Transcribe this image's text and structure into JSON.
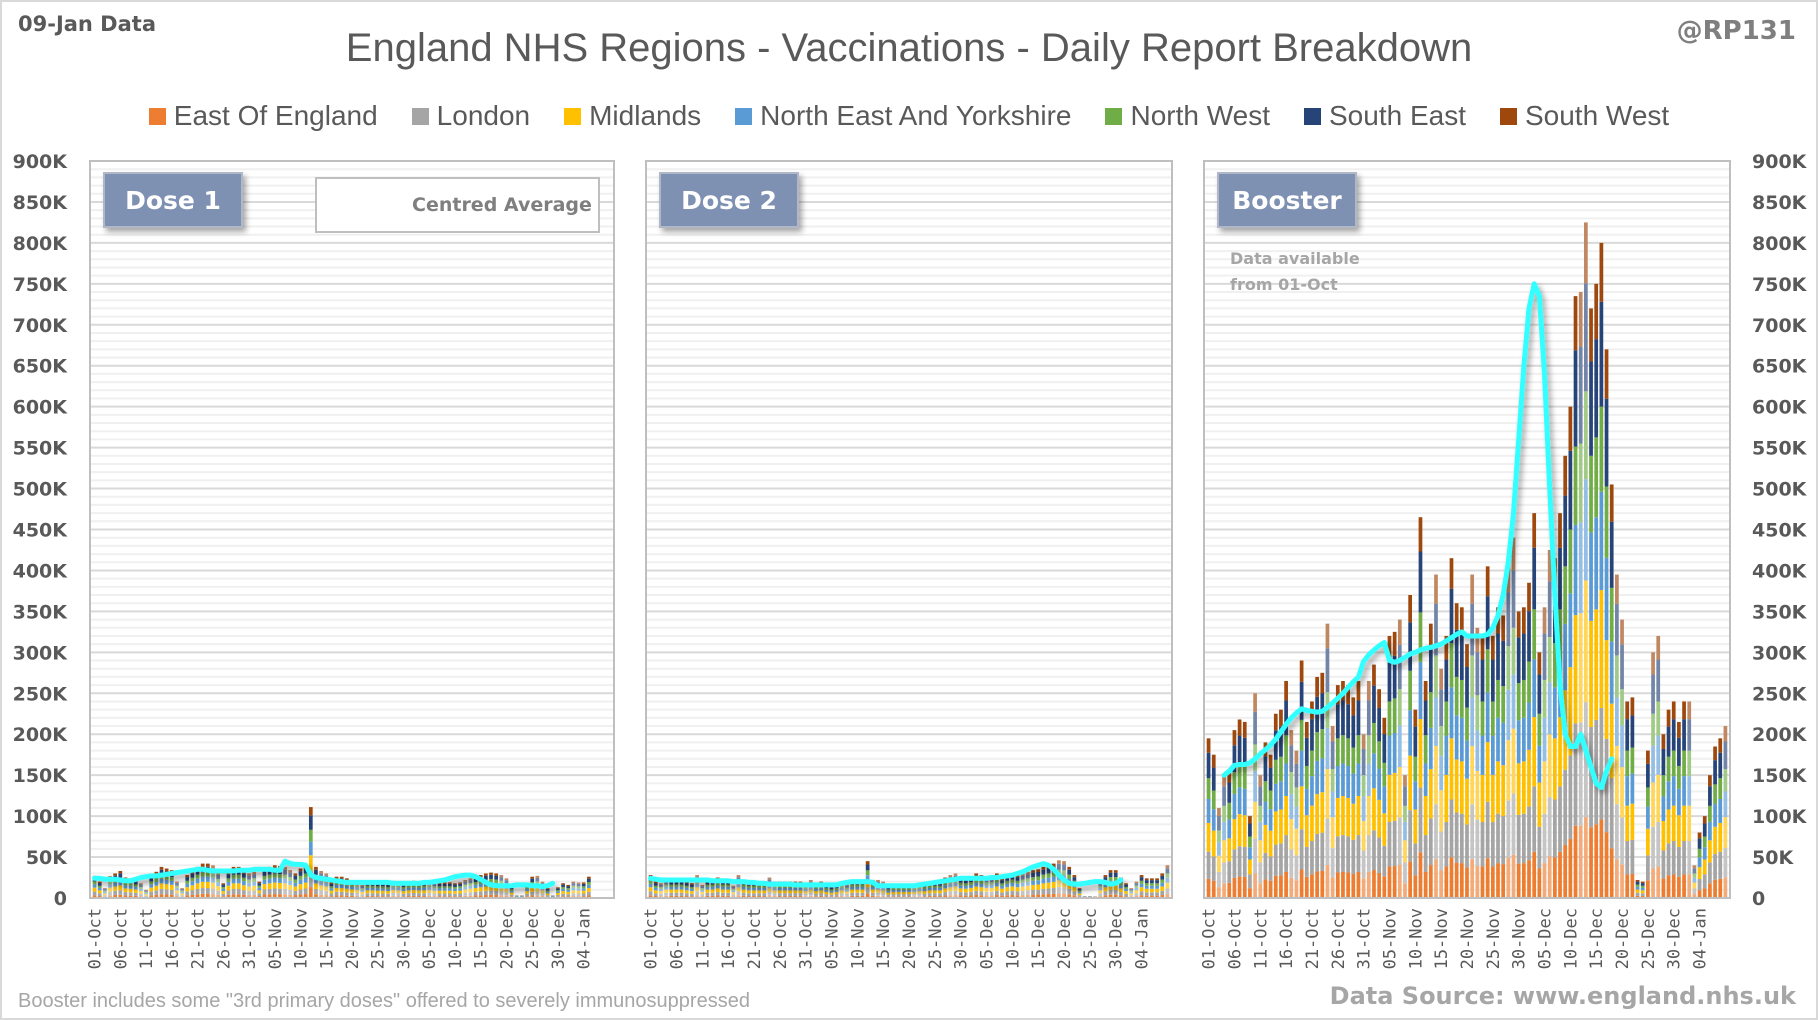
{
  "header": {
    "data_date": "09-Jan Data",
    "handle": "@RP131",
    "title": "England NHS Regions - Vaccinations - Daily Report Breakdown"
  },
  "footer": {
    "note": "Booster includes some \"3rd primary doses\" offered to severely immunosuppressed",
    "source": "Data Source: www.england.nhs.uk"
  },
  "colors": {
    "East Of England": "#ed7d31",
    "London": "#a5a5a5",
    "Midlands": "#ffc000",
    "North East And Yorkshire": "#5b9bd5",
    "North West": "#70ad47",
    "South East": "#264478",
    "South West": "#9e480e",
    "average": "#33ffff",
    "panel_label_bg": "#7f91b3",
    "grid": "#d9d9d9"
  },
  "chart_data": {
    "type": "bar",
    "stacked": true,
    "title": "England NHS Regions - Vaccinations - Daily Report Breakdown",
    "legend": [
      "East Of England",
      "London",
      "Midlands",
      "North East And Yorkshire",
      "North West",
      "South East",
      "South West"
    ],
    "legend_position": "top",
    "line_legend": "Centred Average",
    "ylim": [
      0,
      900000
    ],
    "yticks": [
      "0",
      "50K",
      "100K",
      "150K",
      "200K",
      "250K",
      "300K",
      "350K",
      "400K",
      "450K",
      "500K",
      "550K",
      "600K",
      "650K",
      "700K",
      "750K",
      "800K",
      "850K",
      "900K"
    ],
    "xticks": [
      "01-Oct",
      "06-Oct",
      "11-Oct",
      "16-Oct",
      "21-Oct",
      "26-Oct",
      "31-Oct",
      "05-Nov",
      "10-Nov",
      "15-Nov",
      "20-Nov",
      "25-Nov",
      "30-Nov",
      "05-Dec",
      "10-Dec",
      "15-Dec",
      "20-Dec",
      "25-Dec",
      "30-Dec",
      "04-Jan"
    ],
    "x_start": "01-Oct",
    "num_days": 101,
    "shares": [
      0.12,
      0.17,
      0.18,
      0.15,
      0.13,
      0.16,
      0.09
    ],
    "panels": [
      {
        "label": "Dose 1",
        "totals": [
          27000,
          20000,
          12000,
          27000,
          30000,
          33000,
          25000,
          24000,
          22000,
          18000,
          10000,
          27000,
          32000,
          38000,
          36000,
          34000,
          20000,
          12000,
          28000,
          33000,
          38000,
          42000,
          42000,
          40000,
          31000,
          18000,
          32000,
          38000,
          38000,
          33000,
          30000,
          32000,
          20000,
          36000,
          38000,
          40000,
          39000,
          38000,
          34000,
          30000,
          36000,
          40000,
          111000,
          38000,
          33000,
          30000,
          19000,
          26000,
          26000,
          24000,
          22000,
          21000,
          16000,
          20000,
          20000,
          19000,
          19000,
          18000,
          21000,
          20000,
          18000,
          20000,
          21000,
          20000,
          20000,
          21000,
          19000,
          19000,
          19000,
          19000,
          18000,
          19000,
          22000,
          24000,
          26000,
          28000,
          30000,
          31000,
          30000,
          28000,
          24000,
          14000,
          3000,
          3000,
          18000,
          26000,
          27000,
          20000,
          12000,
          3000,
          13000,
          18000,
          16000,
          20000,
          19000,
          19000,
          26000,
          0,
          0,
          0,
          0
        ],
        "average": [
          24000,
          24000,
          23000,
          23000,
          23000,
          22000,
          21000,
          21000,
          23000,
          25000,
          26000,
          27000,
          27000,
          28000,
          29000,
          30000,
          31000,
          32000,
          33000,
          34000,
          35000,
          35000,
          34000,
          33000,
          33000,
          33000,
          33000,
          33000,
          34000,
          34000,
          34000,
          35000,
          35000,
          35000,
          35000,
          34000,
          34000,
          45000,
          42000,
          41000,
          41000,
          40000,
          28000,
          25000,
          24000,
          23000,
          22000,
          21000,
          20000,
          19000,
          19000,
          19000,
          19000,
          19000,
          19000,
          19000,
          19000,
          19000,
          18000,
          18000,
          18000,
          18000,
          18000,
          18000,
          19000,
          19000,
          20000,
          21000,
          22000,
          24000,
          26000,
          27000,
          28000,
          28000,
          26000,
          23000,
          19000,
          16000,
          15000,
          15000,
          15000,
          15000,
          16000,
          16000,
          16000,
          15000,
          15000,
          14000,
          15000,
          18000,
          null,
          null,
          null,
          null,
          null,
          null,
          null,
          null,
          null,
          null,
          null
        ]
      },
      {
        "label": "Dose 2",
        "totals": [
          28000,
          20000,
          18000,
          22000,
          22000,
          22000,
          22000,
          20000,
          18000,
          28000,
          16000,
          22000,
          22000,
          25000,
          22000,
          22000,
          15000,
          28000,
          22000,
          20000,
          20000,
          20000,
          20000,
          25000,
          20000,
          20000,
          20000,
          20000,
          20000,
          20000,
          18000,
          22000,
          18000,
          20000,
          16000,
          14000,
          16000,
          20000,
          17000,
          22000,
          22000,
          22000,
          45000,
          22000,
          22000,
          20000,
          14000,
          16000,
          16000,
          16000,
          16000,
          16000,
          18000,
          18000,
          20000,
          20000,
          20000,
          25000,
          28000,
          30000,
          25000,
          24000,
          26000,
          30000,
          28000,
          26000,
          26000,
          30000,
          24000,
          28000,
          30000,
          28000,
          30000,
          32000,
          34000,
          35000,
          38000,
          40000,
          42000,
          46000,
          45000,
          38000,
          28000,
          12000,
          2000,
          2000,
          2000,
          20000,
          28000,
          34000,
          34000,
          25000,
          18000,
          12000,
          20000,
          28000,
          24000,
          24000,
          24000,
          30000,
          40000
        ],
        "average": [
          24000,
          23000,
          22000,
          22000,
          22000,
          22000,
          22000,
          22000,
          22000,
          22000,
          22000,
          22000,
          21000,
          21000,
          21000,
          21000,
          20000,
          20000,
          20000,
          19000,
          19000,
          18000,
          18000,
          17000,
          17000,
          17000,
          17000,
          17000,
          16000,
          16000,
          16000,
          16000,
          16000,
          16000,
          16000,
          16000,
          16000,
          18000,
          19000,
          20000,
          20000,
          20000,
          20000,
          19000,
          15000,
          15000,
          15000,
          15000,
          15000,
          15000,
          15000,
          15000,
          16000,
          17000,
          18000,
          19000,
          20000,
          21000,
          22000,
          23000,
          24000,
          24000,
          24000,
          24000,
          24000,
          24000,
          25000,
          25000,
          26000,
          27000,
          28000,
          30000,
          32000,
          35000,
          38000,
          40000,
          42000,
          40000,
          35000,
          28000,
          22000,
          18000,
          17000,
          17000,
          18000,
          19000,
          20000,
          20000,
          19000,
          17000,
          18000,
          22000,
          null,
          null,
          null,
          null,
          null,
          null,
          null,
          null,
          null
        ]
      },
      {
        "label": "Booster",
        "note_lines": [
          "Data available",
          "from 01-Oct"
        ],
        "totals": [
          195000,
          175000,
          110000,
          150000,
          155000,
          205000,
          218000,
          215000,
          100000,
          250000,
          150000,
          190000,
          175000,
          225000,
          230000,
          265000,
          205000,
          180000,
          290000,
          215000,
          240000,
          270000,
          275000,
          335000,
          210000,
          260000,
          265000,
          260000,
          245000,
          265000,
          200000,
          265000,
          285000,
          255000,
          220000,
          320000,
          325000,
          340000,
          150000,
          370000,
          230000,
          465000,
          265000,
          335000,
          395000,
          280000,
          320000,
          415000,
          360000,
          355000,
          310000,
          395000,
          330000,
          320000,
          405000,
          320000,
          355000,
          345000,
          410000,
          440000,
          350000,
          355000,
          385000,
          470000,
          300000,
          355000,
          425000,
          415000,
          470000,
          540000,
          600000,
          735000,
          740000,
          825000,
          720000,
          750000,
          800000,
          670000,
          505000,
          395000,
          340000,
          240000,
          245000,
          22000,
          20000,
          180000,
          300000,
          320000,
          200000,
          230000,
          240000,
          215000,
          240000,
          240000,
          40000,
          80000,
          100000,
          150000,
          185000,
          195000,
          210000
        ],
        "average": [
          null,
          null,
          null,
          150000,
          155000,
          162000,
          163000,
          163000,
          165000,
          170000,
          176000,
          181000,
          187000,
          194000,
          203000,
          212000,
          220000,
          226000,
          231000,
          229000,
          228000,
          227000,
          228000,
          233000,
          238000,
          244000,
          250000,
          257000,
          264000,
          270000,
          289000,
          297000,
          303000,
          308000,
          312000,
          290000,
          288000,
          290000,
          294000,
          298000,
          300000,
          303000,
          305000,
          306000,
          308000,
          310000,
          314000,
          318000,
          322000,
          325000,
          320000,
          320000,
          320000,
          320000,
          322000,
          330000,
          345000,
          370000,
          410000,
          470000,
          560000,
          650000,
          720000,
          750000,
          735000,
          640000,
          500000,
          370000,
          260000,
          200000,
          185000,
          185000,
          200000,
          180000,
          160000,
          140000,
          135000,
          155000,
          170000,
          null,
          null,
          null,
          null,
          null,
          null,
          null,
          null,
          null,
          null,
          null,
          null,
          null,
          null,
          null,
          null,
          null,
          null,
          null,
          null,
          null,
          null
        ]
      }
    ]
  }
}
